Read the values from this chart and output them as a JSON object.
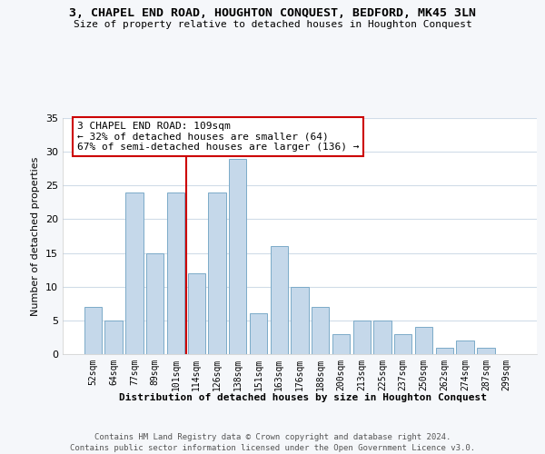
{
  "title": "3, CHAPEL END ROAD, HOUGHTON CONQUEST, BEDFORD, MK45 3LN",
  "subtitle": "Size of property relative to detached houses in Houghton Conquest",
  "xlabel": "Distribution of detached houses by size in Houghton Conquest",
  "ylabel": "Number of detached properties",
  "bar_labels": [
    "52sqm",
    "64sqm",
    "77sqm",
    "89sqm",
    "101sqm",
    "114sqm",
    "126sqm",
    "138sqm",
    "151sqm",
    "163sqm",
    "176sqm",
    "188sqm",
    "200sqm",
    "213sqm",
    "225sqm",
    "237sqm",
    "250sqm",
    "262sqm",
    "274sqm",
    "287sqm",
    "299sqm"
  ],
  "bar_heights": [
    7,
    5,
    24,
    15,
    24,
    12,
    24,
    29,
    6,
    16,
    10,
    7,
    3,
    5,
    5,
    3,
    4,
    1,
    2,
    1,
    0
  ],
  "bar_color": "#c5d8ea",
  "bar_edge_color": "#7baac8",
  "vline_color": "#cc0000",
  "annotation_text": "3 CHAPEL END ROAD: 109sqm\n← 32% of detached houses are smaller (64)\n67% of semi-detached houses are larger (136) →",
  "annotation_box_color": "#ffffff",
  "annotation_box_edge": "#cc0000",
  "ylim": [
    0,
    35
  ],
  "yticks": [
    0,
    5,
    10,
    15,
    20,
    25,
    30,
    35
  ],
  "footer1": "Contains HM Land Registry data © Crown copyright and database right 2024.",
  "footer2": "Contains public sector information licensed under the Open Government Licence v3.0.",
  "bg_color": "#f5f7fa",
  "plot_bg_color": "#ffffff",
  "grid_color": "#d0dce8"
}
